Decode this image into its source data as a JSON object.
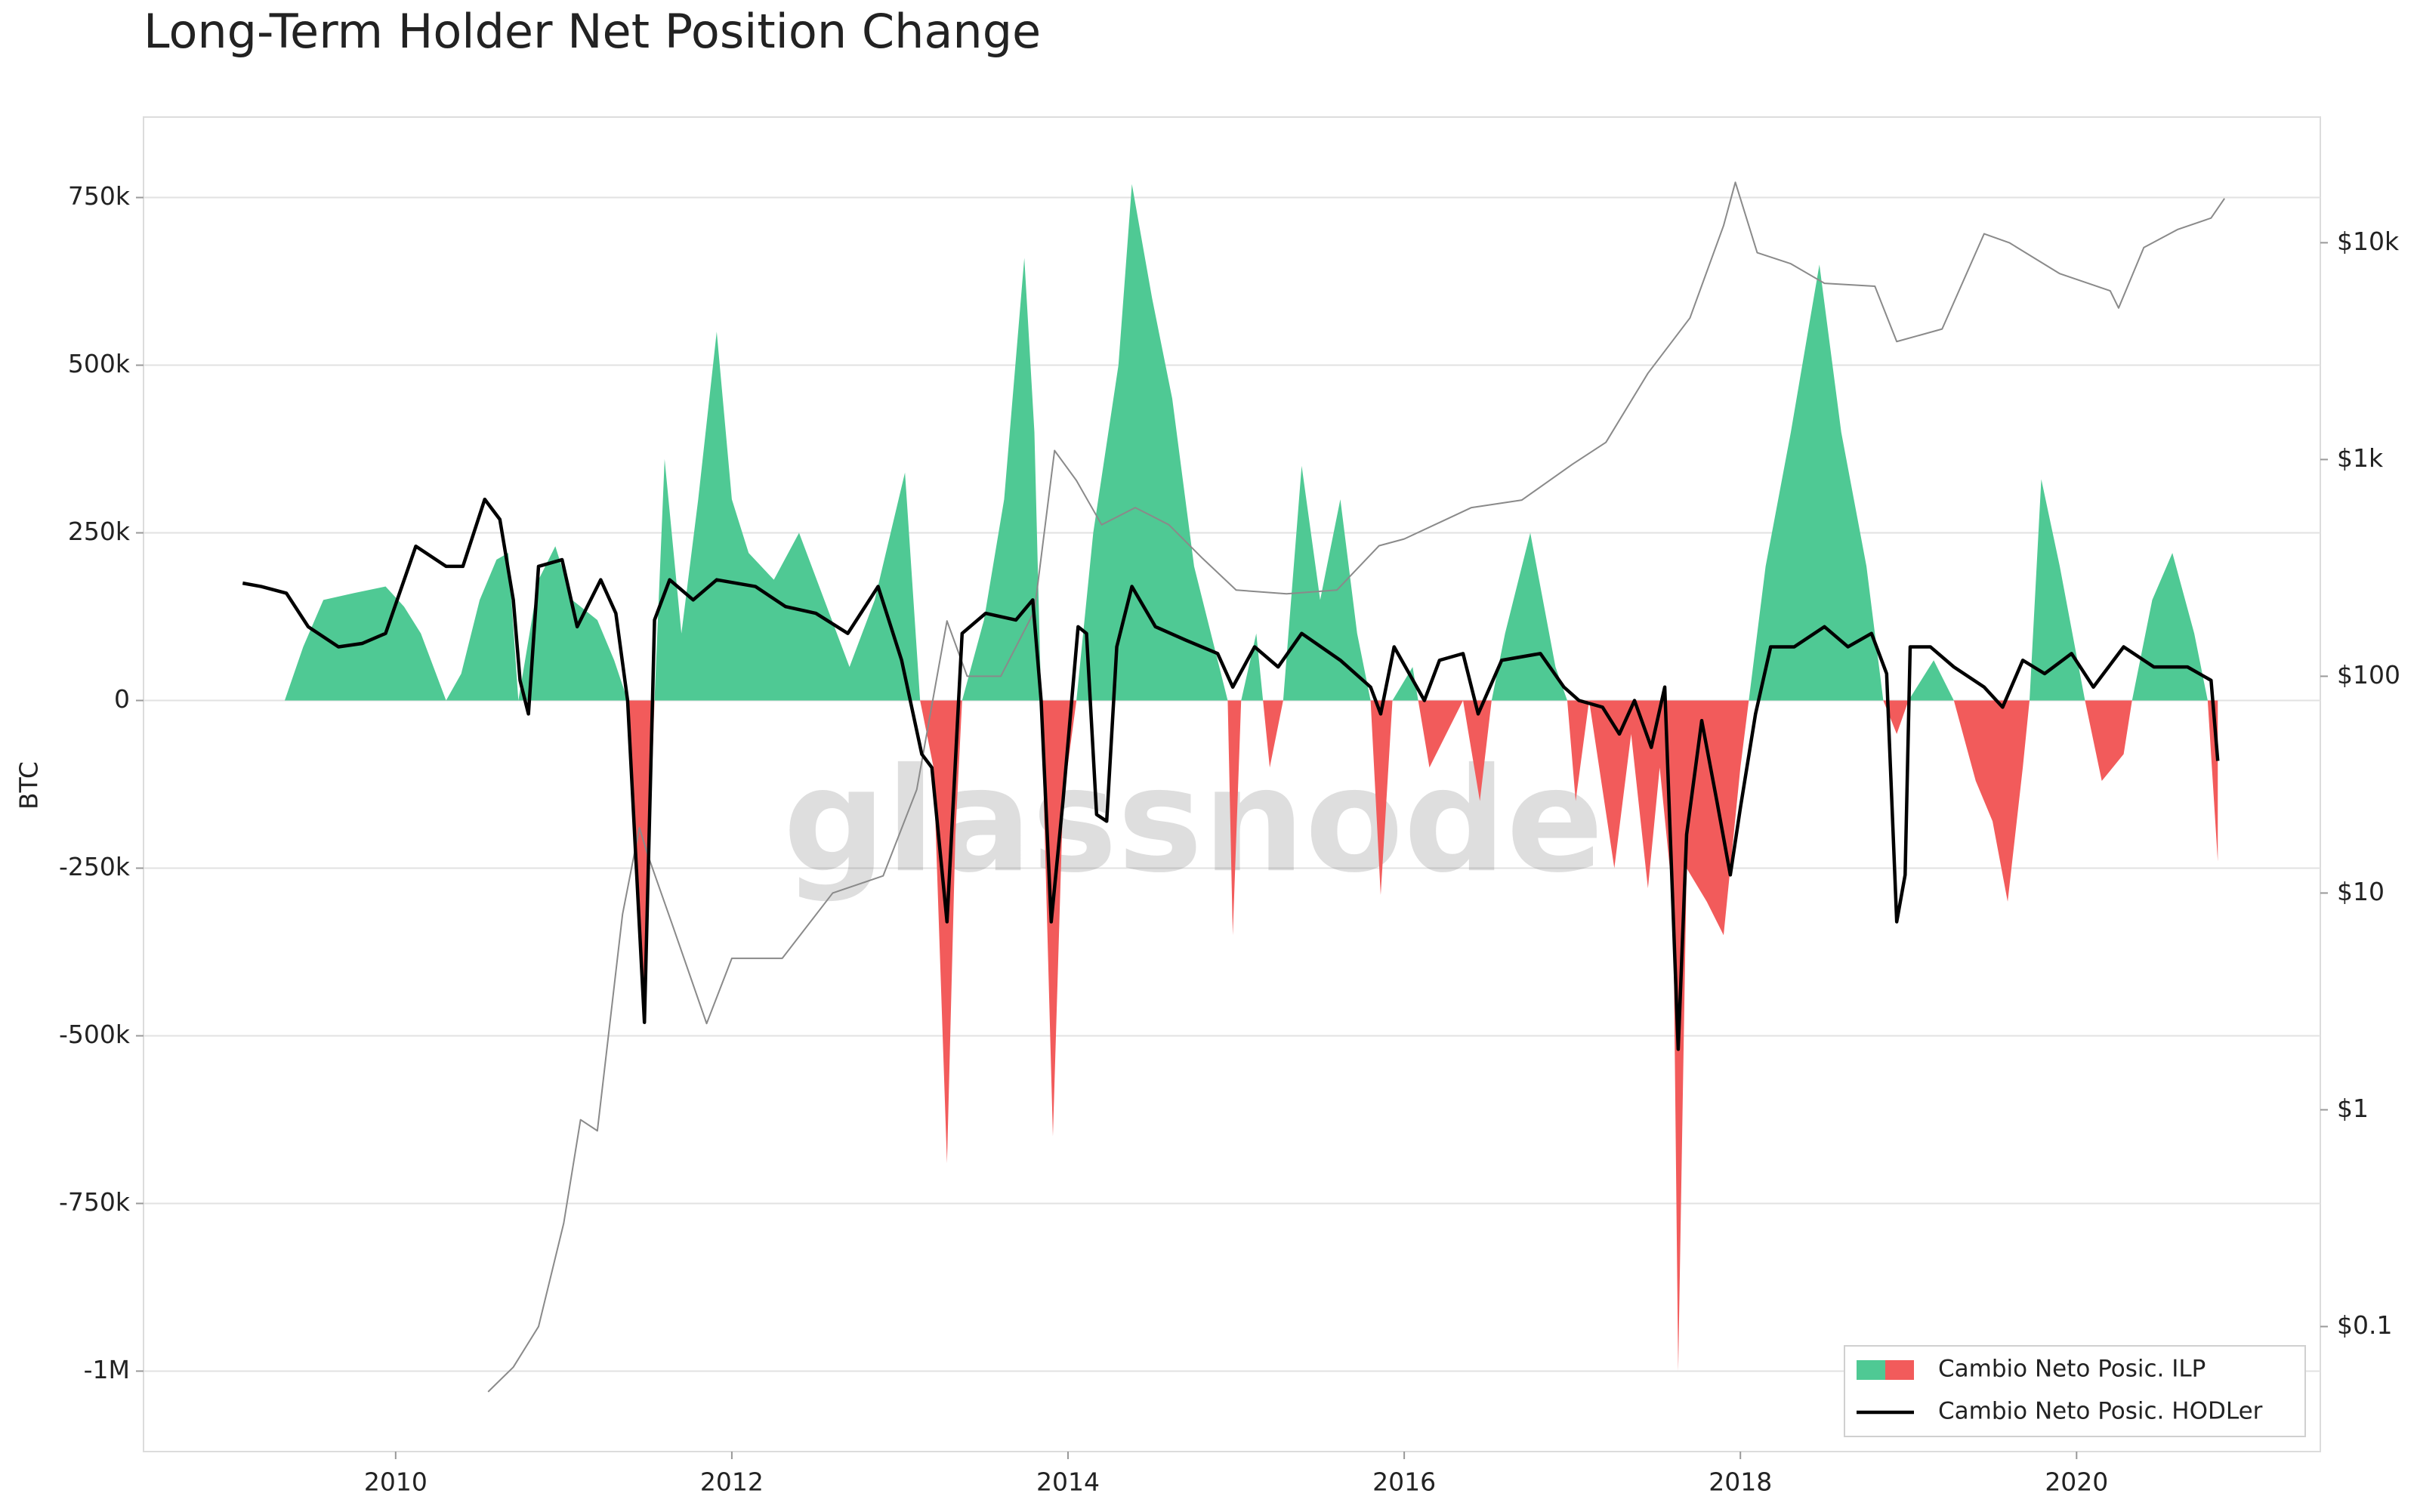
{
  "chart_data": {
    "type": "area",
    "title": "Long-Term Holder Net Position Change",
    "y_label": "BTC",
    "watermark": "glassnode",
    "xlim": [
      2008.5,
      2021.45
    ],
    "xticks": [
      2010,
      2012,
      2014,
      2016,
      2018,
      2020
    ],
    "ylim": [
      -1120000,
      870000
    ],
    "yticks": [
      {
        "value": -1000000,
        "label": "-1M"
      },
      {
        "value": -750000,
        "label": "-750k"
      },
      {
        "value": -500000,
        "label": "-500k"
      },
      {
        "value": -250000,
        "label": "-250k"
      },
      0,
      {
        "value": 250000,
        "label": "250k"
      },
      {
        "value": 500000,
        "label": "500k"
      },
      {
        "value": 750000,
        "label": "750k"
      }
    ],
    "y2lim": [
      0.0265,
      38000
    ],
    "y2_log": true,
    "y2ticks": [
      {
        "value": 0.1,
        "label": "$0.1"
      },
      {
        "value": 1,
        "label": "$1"
      },
      {
        "value": 10,
        "label": "$10"
      },
      {
        "value": 100,
        "label": "$100"
      },
      {
        "value": 1000,
        "label": "$1k"
      },
      {
        "value": 10000,
        "label": "$10k"
      }
    ],
    "grid": true,
    "legend": "lower right",
    "series": [
      {
        "name": "Cambio Neto Posic. ILP",
        "kind": "area",
        "color": "#4fc994",
        "negative_color": "#f25b5b",
        "x": [
          2009.34,
          2009.45,
          2009.57,
          2009.75,
          2009.94,
          2010.05,
          2010.15,
          2010.3,
          2010.39,
          2010.5,
          2010.6,
          2010.67,
          2010.73,
          2010.85,
          2010.95,
          2011.05,
          2011.2,
          2011.3,
          2011.38,
          2011.45,
          2011.48,
          2011.52,
          2011.54,
          2011.6,
          2011.7,
          2011.8,
          2011.91,
          2012.0,
          2012.1,
          2012.25,
          2012.4,
          2012.55,
          2012.7,
          2012.85,
          2013.03,
          2013.12,
          2013.2,
          2013.28,
          2013.33,
          2013.37,
          2013.5,
          2013.62,
          2013.74,
          2013.8,
          2013.84,
          2013.91,
          2013.97,
          2014.05,
          2014.15,
          2014.3,
          2014.38,
          2014.5,
          2014.62,
          2014.75,
          2014.9,
          2014.95,
          2014.98,
          2015.03,
          2015.12,
          2015.2,
          2015.28,
          2015.39,
          2015.5,
          2015.62,
          2015.72,
          2015.8,
          2015.86,
          2015.93,
          2016.05,
          2016.15,
          2016.25,
          2016.35,
          2016.45,
          2016.52,
          2016.6,
          2016.75,
          2016.9,
          2016.97,
          2017.02,
          2017.1,
          2017.25,
          2017.35,
          2017.45,
          2017.52,
          2017.6,
          2017.63,
          2017.68,
          2017.8,
          2017.9,
          2018.0,
          2018.05,
          2018.15,
          2018.3,
          2018.47,
          2018.6,
          2018.75,
          2018.85,
          2018.93,
          2019.0,
          2019.15,
          2019.27,
          2019.4,
          2019.5,
          2019.59,
          2019.68,
          2019.72,
          2019.79,
          2019.9,
          2020.05,
          2020.15,
          2020.28,
          2020.33,
          2020.45,
          2020.57,
          2020.7,
          2020.78,
          2020.84
        ],
        "values": [
          0,
          80000,
          150000,
          160000,
          170000,
          140000,
          100000,
          0,
          40000,
          150000,
          210000,
          220000,
          0,
          180000,
          230000,
          150000,
          120000,
          60000,
          0,
          -300000,
          -480000,
          -150000,
          0,
          360000,
          100000,
          300000,
          550000,
          300000,
          220000,
          180000,
          250000,
          150000,
          50000,
          150000,
          340000,
          0,
          -100000,
          -690000,
          -200000,
          0,
          120000,
          300000,
          660000,
          400000,
          0,
          -650000,
          -150000,
          0,
          250000,
          500000,
          770000,
          600000,
          450000,
          200000,
          50000,
          0,
          -350000,
          0,
          100000,
          -100000,
          0,
          350000,
          150000,
          300000,
          100000,
          0,
          -290000,
          0,
          50000,
          -100000,
          -50000,
          0,
          -150000,
          0,
          100000,
          250000,
          50000,
          0,
          -150000,
          0,
          -250000,
          -50000,
          -280000,
          -100000,
          -300000,
          -1000000,
          -250000,
          -300000,
          -350000,
          -100000,
          0,
          200000,
          400000,
          650000,
          400000,
          200000,
          0,
          -50000,
          0,
          60000,
          0,
          -120000,
          -180000,
          -300000,
          -100000,
          0,
          330000,
          200000,
          0,
          -120000,
          -80000,
          0,
          150000,
          220000,
          100000,
          0,
          -240000
        ]
      },
      {
        "name": "Cambio Neto Posic. HODLer",
        "kind": "line",
        "color": "#000000",
        "x": [
          2009.09,
          2009.2,
          2009.35,
          2009.48,
          2009.66,
          2009.8,
          2009.94,
          2010.12,
          2010.3,
          2010.4,
          2010.53,
          2010.62,
          2010.7,
          2010.74,
          2010.79,
          2010.85,
          2010.99,
          2011.08,
          2011.22,
          2011.31,
          2011.38,
          2011.48,
          2011.54,
          2011.63,
          2011.77,
          2011.91,
          2012.14,
          2012.32,
          2012.5,
          2012.69,
          2012.87,
          2013.01,
          2013.13,
          2013.19,
          2013.28,
          2013.37,
          2013.51,
          2013.69,
          2013.79,
          2013.84,
          2013.9,
          2013.97,
          2014.06,
          2014.11,
          2014.17,
          2014.23,
          2014.29,
          2014.38,
          2014.52,
          2014.7,
          2014.89,
          2014.98,
          2015.11,
          2015.25,
          2015.39,
          2015.62,
          2015.8,
          2015.86,
          2015.94,
          2016.12,
          2016.21,
          2016.35,
          2016.44,
          2016.58,
          2016.81,
          2016.95,
          2017.04,
          2017.18,
          2017.28,
          2017.37,
          2017.47,
          2017.55,
          2017.63,
          2017.68,
          2017.77,
          2017.86,
          2017.94,
          2018.0,
          2018.09,
          2018.18,
          2018.32,
          2018.5,
          2018.64,
          2018.78,
          2018.87,
          2018.93,
          2018.98,
          2019.01,
          2019.13,
          2019.27,
          2019.45,
          2019.56,
          2019.68,
          2019.81,
          2019.97,
          2020.1,
          2020.28,
          2020.46,
          2020.66,
          2020.8,
          2020.84
        ],
        "values": [
          175000,
          170000,
          160000,
          110000,
          80000,
          85000,
          100000,
          230000,
          200000,
          200000,
          300000,
          270000,
          150000,
          30000,
          -20000,
          200000,
          210000,
          110000,
          180000,
          130000,
          0,
          -480000,
          120000,
          180000,
          150000,
          180000,
          170000,
          140000,
          130000,
          100000,
          170000,
          60000,
          -80000,
          -100000,
          -330000,
          100000,
          130000,
          120000,
          150000,
          0,
          -330000,
          -150000,
          110000,
          100000,
          -170000,
          -180000,
          80000,
          170000,
          110000,
          90000,
          70000,
          20000,
          80000,
          50000,
          100000,
          60000,
          20000,
          -20000,
          80000,
          0,
          60000,
          70000,
          -20000,
          60000,
          70000,
          20000,
          0,
          -10000,
          -50000,
          0,
          -70000,
          20000,
          -520000,
          -200000,
          -30000,
          -150000,
          -260000,
          -160000,
          -20000,
          80000,
          80000,
          110000,
          80000,
          100000,
          40000,
          -330000,
          -260000,
          80000,
          80000,
          50000,
          20000,
          -10000,
          60000,
          40000,
          70000,
          20000,
          80000,
          50000,
          50000,
          30000,
          -90000
        ]
      }
    ],
    "price_series": {
      "axis": "y2",
      "color": "#8a8a8a",
      "x": [
        2010.55,
        2010.7,
        2010.85,
        2011.0,
        2011.1,
        2011.2,
        2011.35,
        2011.45,
        2011.5,
        2011.65,
        2011.85,
        2012.0,
        2012.3,
        2012.6,
        2012.9,
        2013.1,
        2013.28,
        2013.4,
        2013.6,
        2013.8,
        2013.92,
        2014.05,
        2014.2,
        2014.4,
        2014.6,
        2014.8,
        2015.0,
        2015.3,
        2015.6,
        2015.85,
        2016.0,
        2016.4,
        2016.7,
        2017.0,
        2017.2,
        2017.45,
        2017.7,
        2017.9,
        2017.97,
        2018.1,
        2018.3,
        2018.5,
        2018.8,
        2018.93,
        2019.2,
        2019.45,
        2019.6,
        2019.9,
        2020.2,
        2020.25,
        2020.4,
        2020.6,
        2020.8,
        2020.88
      ],
      "values": [
        0.05,
        0.065,
        0.1,
        0.3,
        0.9,
        0.8,
        8,
        20,
        15,
        7,
        2.5,
        5,
        5,
        10,
        12,
        30,
        180,
        100,
        100,
        200,
        1100,
        800,
        500,
        600,
        500,
        350,
        250,
        240,
        250,
        400,
        430,
        600,
        650,
        950,
        1200,
        2500,
        4500,
        12000,
        19000,
        9000,
        8000,
        6500,
        6300,
        3500,
        4000,
        11000,
        10000,
        7200,
        6000,
        5000,
        9500,
        11500,
        13000,
        16000
      ]
    }
  }
}
